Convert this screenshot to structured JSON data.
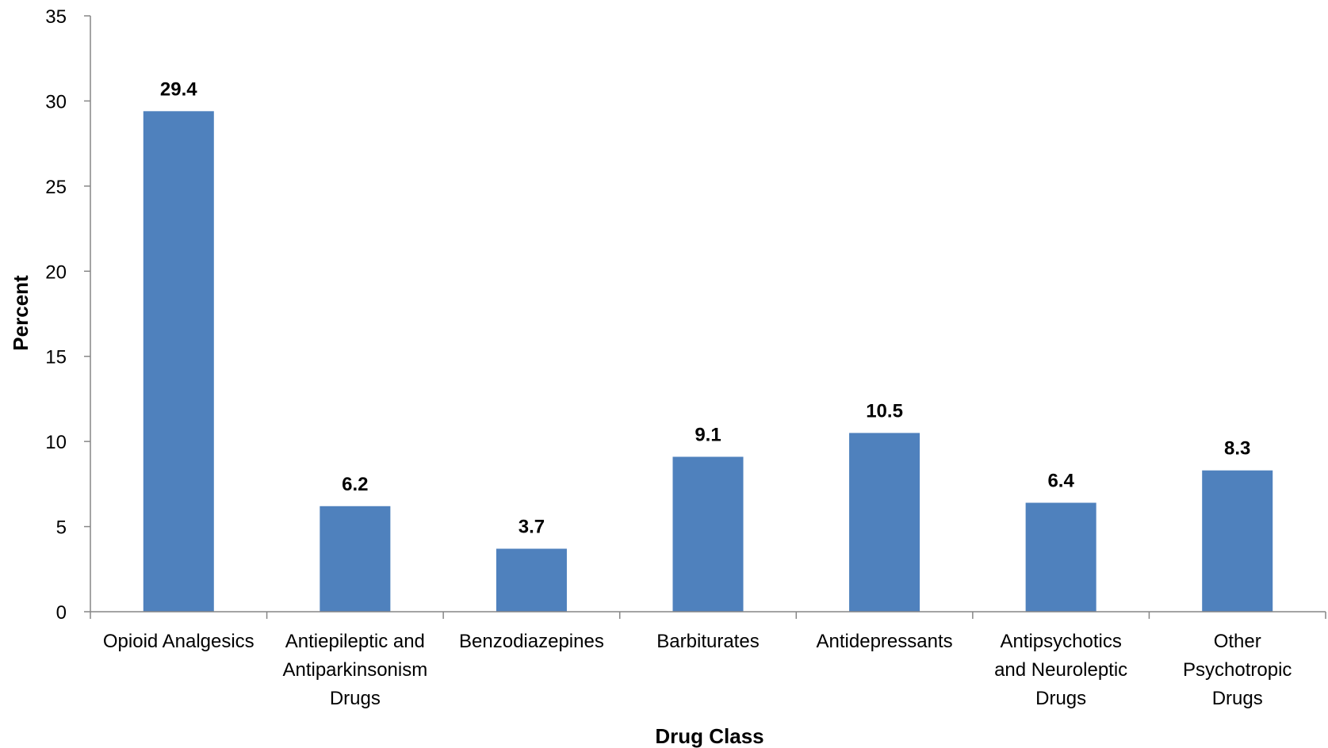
{
  "chart_data": {
    "type": "bar",
    "title": "",
    "xlabel": "Drug Class",
    "ylabel": "Percent",
    "ylim": [
      0,
      35
    ],
    "yticks": [
      0,
      5,
      10,
      15,
      20,
      25,
      30,
      35
    ],
    "grid": false,
    "legend": "none",
    "categories": [
      [
        "Opioid Analgesics"
      ],
      [
        "Antiepileptic and",
        "Antiparkinsonism",
        "Drugs"
      ],
      [
        "Benzodiazepines"
      ],
      [
        "Barbiturates"
      ],
      [
        "Antidepressants"
      ],
      [
        "Antipsychotics",
        "and Neuroleptic",
        "Drugs"
      ],
      [
        "Other",
        "Psychotropic",
        "Drugs"
      ]
    ],
    "values": [
      29.4,
      6.2,
      3.7,
      9.1,
      10.5,
      6.4,
      8.3
    ],
    "data_labels": [
      "29.4",
      "6.2",
      "3.7",
      "9.1",
      "10.5",
      "6.4",
      "8.3"
    ],
    "bar_color": "#4F81BD"
  }
}
